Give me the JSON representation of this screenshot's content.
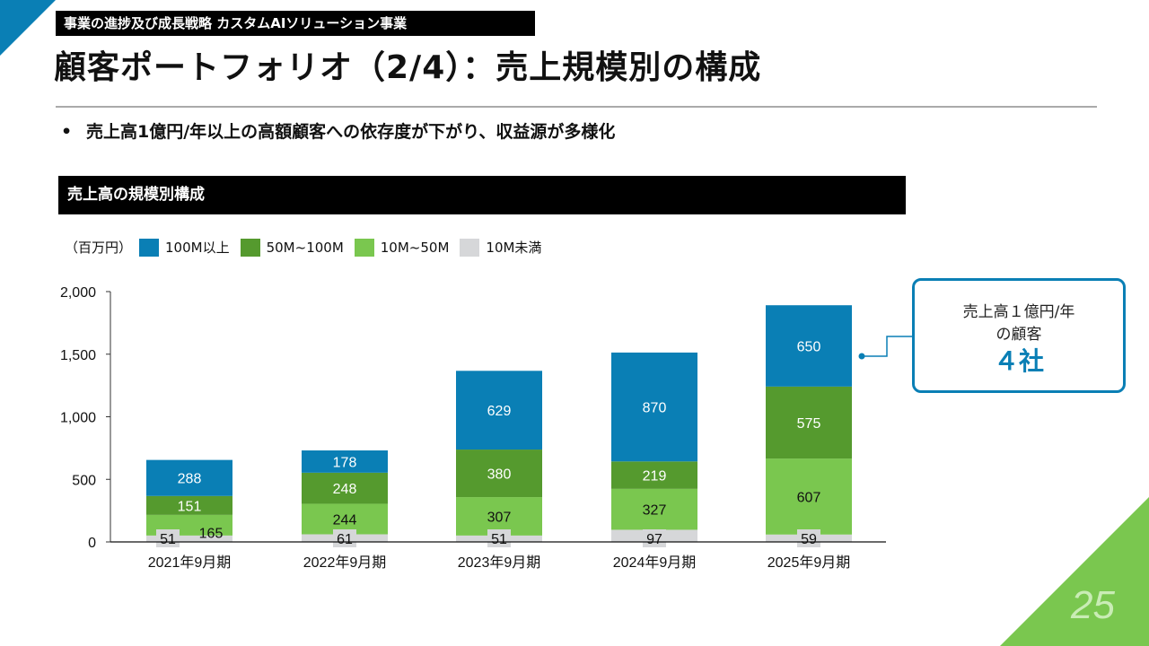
{
  "section_label": "事業の進捗及び成長戦略 カスタムAIソリューション事業",
  "page_title": "顧客ポートフォリオ（2/4）：売上規模別の構成",
  "bullet": "売上高1億円/年以上の高額顧客への依存度が下がり、収益源が多様化",
  "bullet_marker": "•",
  "chart_header": "売上高の規模別構成",
  "page_number": "25",
  "colors": {
    "accent_blue": "#0a7fb5",
    "accent_green": "#7ac74f"
  },
  "callout": {
    "line1": "売上高１億円/年",
    "line2": "の顧客",
    "value": "４社"
  },
  "chart_data": {
    "type": "bar",
    "stacked": true,
    "unit_label": "（百万円）",
    "categories": [
      "2021年9月期",
      "2022年9月期",
      "2023年9月期",
      "2024年9月期",
      "2025年9月期"
    ],
    "series": [
      {
        "name": "10M未満",
        "color": "#d6d7d9",
        "label_color": "#111111",
        "values": [
          51,
          61,
          51,
          97,
          59
        ]
      },
      {
        "name": "10M~50M",
        "color": "#7ac74f",
        "label_color": "#111111",
        "values": [
          165,
          244,
          307,
          327,
          607
        ]
      },
      {
        "name": "50M~100M",
        "color": "#559a2e",
        "label_color": "#ffffff",
        "values": [
          151,
          248,
          380,
          219,
          575
        ]
      },
      {
        "name": "100M以上",
        "color": "#0a7fb5",
        "label_color": "#ffffff",
        "values": [
          288,
          178,
          629,
          870,
          650
        ]
      }
    ],
    "legend_order": [
      "100M以上",
      "50M~100M",
      "10M~50M",
      "10M未満"
    ],
    "legend_position": "top-left",
    "yticks": [
      0,
      500,
      1000,
      1500,
      2000
    ],
    "ytick_labels": [
      "0",
      "500",
      "1,000",
      "1,500",
      "2,000"
    ],
    "ylim": [
      0,
      2000
    ],
    "grid": false,
    "title": "売上高の規模別構成",
    "xlabel": "",
    "ylabel": "百万円"
  }
}
